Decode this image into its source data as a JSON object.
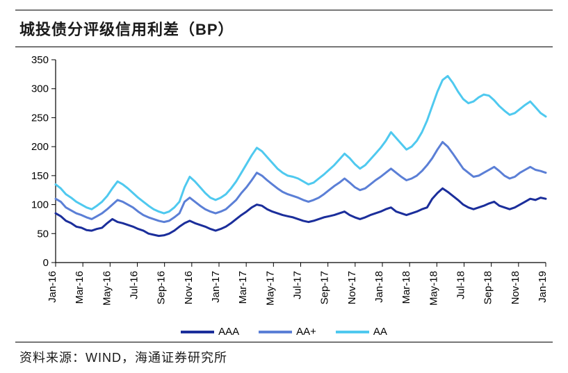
{
  "title": "城投债分评级信用利差（BP）",
  "source": "资料来源：WIND，海通证券研究所",
  "chart": {
    "type": "line",
    "background_color": "#ffffff",
    "axis_color": "#000000",
    "label_color": "#000000",
    "title_fontsize": 22,
    "axis_fontsize": 15,
    "legend_fontsize": 15,
    "line_width": 3,
    "ylim": [
      0,
      350
    ],
    "ytick_step": 50,
    "yticks": [
      0,
      50,
      100,
      150,
      200,
      250,
      300,
      350
    ],
    "x_labels": [
      "Jan-16",
      "Mar-16",
      "May-16",
      "Jul-16",
      "Sep-16",
      "Nov-16",
      "Jan-17",
      "Mar-17",
      "May-17",
      "Jul-17",
      "Sep-17",
      "Nov-17",
      "Jan-18",
      "Mar-18",
      "May-18",
      "Jul-18",
      "Sep-18",
      "Nov-18",
      "Jan-19"
    ],
    "legend_items": [
      {
        "label": "AAA",
        "color": "#1b2e9b"
      },
      {
        "label": "AA+",
        "color": "#5b7fd6"
      },
      {
        "label": "AA",
        "color": "#4fc9ef"
      }
    ],
    "series": [
      {
        "name": "AAA",
        "color": "#1b2e9b",
        "values": [
          85,
          80,
          72,
          68,
          62,
          60,
          56,
          55,
          58,
          60,
          68,
          75,
          70,
          68,
          65,
          62,
          58,
          55,
          50,
          48,
          46,
          47,
          50,
          55,
          62,
          68,
          72,
          68,
          65,
          62,
          58,
          55,
          58,
          62,
          68,
          75,
          82,
          88,
          95,
          100,
          98,
          92,
          88,
          85,
          82,
          80,
          78,
          75,
          72,
          70,
          72,
          75,
          78,
          80,
          82,
          85,
          88,
          82,
          78,
          75,
          78,
          82,
          85,
          88,
          92,
          95,
          88,
          85,
          82,
          85,
          88,
          92,
          95,
          110,
          120,
          128,
          122,
          115,
          108,
          100,
          95,
          92,
          95,
          98,
          102,
          105,
          98,
          95,
          92,
          95,
          100,
          105,
          110,
          108,
          112,
          110
        ]
      },
      {
        "name": "AA+",
        "color": "#5b7fd6",
        "values": [
          110,
          105,
          95,
          90,
          85,
          82,
          78,
          75,
          80,
          85,
          92,
          100,
          108,
          105,
          100,
          95,
          88,
          82,
          78,
          75,
          72,
          70,
          72,
          78,
          85,
          105,
          112,
          105,
          98,
          92,
          88,
          85,
          88,
          92,
          100,
          108,
          120,
          130,
          142,
          155,
          150,
          142,
          135,
          128,
          122,
          118,
          115,
          112,
          108,
          105,
          108,
          112,
          118,
          125,
          132,
          138,
          145,
          138,
          130,
          125,
          128,
          135,
          142,
          148,
          155,
          162,
          155,
          148,
          142,
          145,
          150,
          158,
          168,
          180,
          195,
          208,
          200,
          188,
          175,
          162,
          155,
          148,
          150,
          155,
          160,
          165,
          158,
          150,
          145,
          148,
          155,
          160,
          165,
          160,
          158,
          155
        ]
      },
      {
        "name": "AA",
        "color": "#4fc9ef",
        "values": [
          135,
          128,
          118,
          112,
          105,
          100,
          95,
          92,
          98,
          105,
          115,
          128,
          140,
          135,
          128,
          120,
          112,
          105,
          98,
          92,
          88,
          85,
          88,
          95,
          105,
          130,
          148,
          140,
          130,
          120,
          112,
          108,
          112,
          118,
          128,
          140,
          155,
          170,
          185,
          198,
          192,
          182,
          172,
          162,
          155,
          150,
          148,
          145,
          140,
          135,
          138,
          145,
          152,
          160,
          168,
          178,
          188,
          180,
          170,
          162,
          168,
          178,
          188,
          198,
          210,
          225,
          215,
          205,
          195,
          200,
          210,
          225,
          245,
          270,
          295,
          315,
          322,
          310,
          295,
          282,
          275,
          278,
          285,
          290,
          288,
          280,
          270,
          262,
          255,
          258,
          265,
          272,
          278,
          268,
          258,
          252
        ]
      }
    ]
  }
}
